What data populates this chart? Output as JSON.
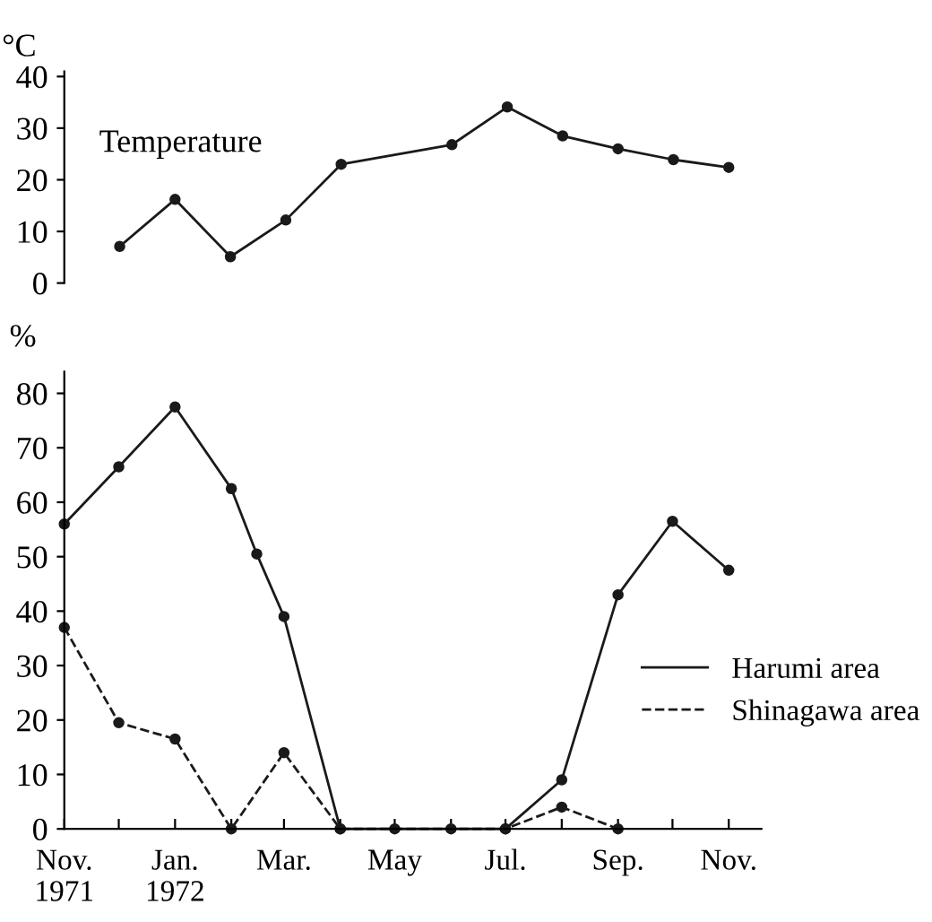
{
  "chart_data": [
    {
      "type": "line",
      "ylabel": "°C",
      "annotations": [
        "Temperature"
      ],
      "ylim": [
        0,
        41
      ],
      "yticks": [
        0,
        10,
        20,
        30,
        40
      ],
      "tick_labels": "y",
      "grid": false,
      "legend": false,
      "marker": "circle",
      "line_style": "solid",
      "categories": [
        null,
        null,
        null,
        null,
        null,
        null,
        null,
        null,
        null,
        null,
        null,
        null,
        null
      ],
      "series": [
        {
          "color": "#1a1a1a",
          "values": [
            null,
            7.1,
            16.2,
            5.1,
            12.2,
            23,
            null,
            26.8,
            34.1,
            28.5,
            26,
            23.9,
            22.4
          ]
        }
      ]
    },
    {
      "type": "line",
      "ylabel": "%",
      "xlim": [
        "1971-11-01",
        "1972-11-19"
      ],
      "ylim": [
        0,
        84
      ],
      "yticks": [
        0,
        10,
        20,
        30,
        40,
        50,
        60,
        70,
        80
      ],
      "xticks": [
        {
          "value": "1971-11-01",
          "label": "Nov.\n1971"
        },
        {
          "value": "1971-12-01",
          "label": null
        },
        {
          "value": "1972-01-01",
          "label": "Jan.\n1972"
        },
        {
          "value": "1972-02-01",
          "label": null
        },
        {
          "value": "1972-03-01",
          "label": "Mar."
        },
        {
          "value": "1972-04-01",
          "label": null
        },
        {
          "value": "1972-05-01",
          "label": "May"
        },
        {
          "value": "1972-06-01",
          "label": null
        },
        {
          "value": "1972-07-01",
          "label": "Jul."
        },
        {
          "value": "1972-08-01",
          "label": null
        },
        {
          "value": "1972-09-01",
          "label": "Sep."
        },
        {
          "value": "1972-10-01",
          "label": null
        },
        {
          "value": "1972-11-01",
          "label": "Nov."
        }
      ],
      "grid": false,
      "legend": "right",
      "marker": "circle",
      "series": [
        {
          "name": "Harumi area",
          "color": "#1a1a1a",
          "line_style": "solid",
          "x": [
            "1971-11-01",
            "1971-12-01",
            "1972-01-01",
            "1972-02-01",
            "1972-02-15",
            "1972-03-01",
            "1972-04-01",
            "1972-05-01",
            "1972-06-01",
            "1972-07-01",
            "1972-08-01",
            "1972-09-01",
            "1972-10-01",
            "1972-11-01"
          ],
          "values": [
            56,
            66.5,
            77.5,
            62.5,
            50.5,
            39,
            0,
            0,
            0,
            0,
            9,
            43,
            56.5,
            47.5
          ]
        },
        {
          "name": "Shinagawa area",
          "color": "#1a1a1a",
          "line_style": "dashed",
          "x": [
            "1971-11-01",
            "1971-12-01",
            "1972-01-01",
            "1972-02-01",
            "1972-03-01",
            "1972-04-01",
            "1972-07-01",
            "1972-08-01",
            "1972-09-01"
          ],
          "values": [
            37,
            19.5,
            16.5,
            0,
            14,
            0,
            0,
            4,
            0
          ]
        }
      ]
    }
  ]
}
